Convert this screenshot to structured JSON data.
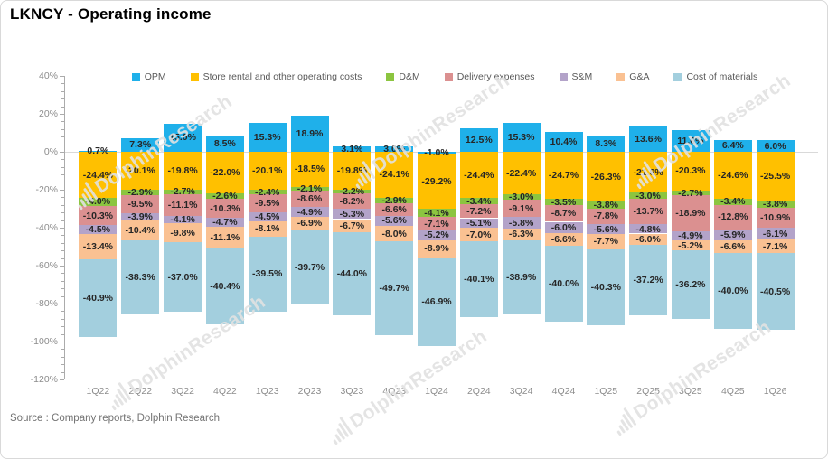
{
  "title": "LKNCY - Operating income",
  "source_note": "Source : Company reports, Dolphin Research",
  "watermark": "DolphinResearch",
  "colors": {
    "zero_line": "#d9d9d9",
    "axis": "#ababab",
    "axis_text": "#8c8c8c",
    "value_label": "#262626",
    "legend_text": "#595959",
    "border": "#d9d9d9",
    "watermark": "#e2e2e2"
  },
  "chart_data": {
    "type": "bar",
    "stacked": true,
    "title": "LKNCY - Operating income",
    "legend_position": "top",
    "grid": "zero-line-only",
    "value_label_suffix": "%",
    "categories": [
      "1Q22",
      "2Q22",
      "3Q22",
      "4Q22",
      "1Q23",
      "2Q23",
      "3Q23",
      "4Q23",
      "1Q24",
      "2Q24",
      "3Q24",
      "4Q24",
      "1Q25",
      "2Q25",
      "3Q25",
      "4Q25",
      "1Q26"
    ],
    "series": [
      {
        "name": "OPM",
        "color": "#1FB0EA",
        "values": [
          0.7,
          7.3,
          15.0,
          8.5,
          15.3,
          18.9,
          3.1,
          3.0,
          -1.0,
          12.5,
          15.3,
          10.4,
          8.3,
          13.6,
          11.6,
          6.4,
          6.0
        ]
      },
      {
        "name": "Store rental and other operating costs",
        "color": "#FFC000",
        "values": [
          -24.4,
          -20.1,
          -19.8,
          -22.0,
          -20.1,
          -18.5,
          -19.8,
          -24.1,
          -29.2,
          -24.4,
          -22.4,
          -24.7,
          -26.3,
          -21.6,
          -20.3,
          -24.6,
          -25.5
        ]
      },
      {
        "name": "D&M",
        "color": "#8CC540",
        "values": [
          -4.0,
          -2.9,
          -2.7,
          -2.6,
          -2.4,
          -2.1,
          -2.2,
          -2.9,
          -4.1,
          -3.4,
          -3.0,
          -3.5,
          -3.8,
          -3.0,
          -2.7,
          -3.4,
          -3.8
        ]
      },
      {
        "name": "Delivery expenses",
        "color": "#DB9090",
        "values": [
          -10.3,
          -9.5,
          -11.1,
          -10.3,
          -9.5,
          -8.6,
          -8.2,
          -6.6,
          -7.1,
          -7.2,
          -9.1,
          -8.7,
          -7.8,
          -13.7,
          -18.9,
          -12.8,
          -10.9
        ]
      },
      {
        "name": "S&M",
        "color": "#B3A3C9",
        "values": [
          -4.5,
          -3.9,
          -4.1,
          -4.7,
          -4.5,
          -4.9,
          -5.3,
          -5.6,
          -5.2,
          -5.1,
          -5.8,
          -6.0,
          -5.6,
          -4.8,
          -4.9,
          -5.9,
          -6.1
        ]
      },
      {
        "name": "G&A",
        "color": "#FAC192",
        "values": [
          -13.4,
          -10.4,
          -9.8,
          -11.1,
          -8.1,
          -6.9,
          -6.7,
          -8.0,
          -8.9,
          -7.0,
          -6.3,
          -6.6,
          -7.7,
          -6.0,
          -5.2,
          -6.6,
          -7.1
        ]
      },
      {
        "name": "Cost of materials",
        "color": "#A3CFDE",
        "values": [
          -40.9,
          -38.3,
          -37.0,
          -40.4,
          -39.5,
          -39.7,
          -44.0,
          -49.7,
          -46.9,
          -40.1,
          -38.9,
          -40.0,
          -40.3,
          -37.2,
          -36.2,
          -40.0,
          -40.5
        ]
      }
    ],
    "y_axis": {
      "min": -120,
      "max": 40,
      "tick_step": 20,
      "minor_tick_step": 4,
      "tick_labels": [
        "40%",
        "20%",
        "0%",
        "-20%",
        "-40%",
        "-60%",
        "-80%",
        "-100%",
        "-120%"
      ]
    }
  }
}
